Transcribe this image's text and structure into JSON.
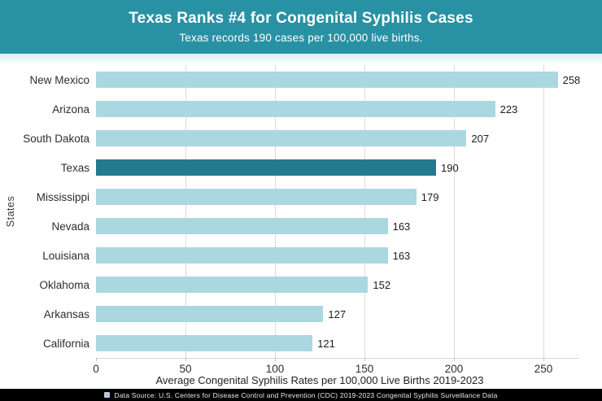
{
  "header": {
    "title": "Texas Ranks #4 for Congenital Syphilis Cases",
    "subtitle": "Texas records 190 cases per 100,000 live births.",
    "background_color": "#2991a4",
    "text_color": "#ffffff"
  },
  "chart_data": {
    "type": "bar",
    "orientation": "horizontal",
    "categories": [
      "New Mexico",
      "Arizona",
      "South Dakota",
      "Texas",
      "Mississippi",
      "Nevada",
      "Louisiana",
      "Oklahoma",
      "Arkansas",
      "California"
    ],
    "values": [
      258,
      223,
      207,
      190,
      179,
      163,
      163,
      152,
      127,
      121
    ],
    "title": "Texas Ranks #4 for Congenital Syphilis Cases",
    "xlabel": "Average Congenital Syphilis Rates per 100,000 Live Births 2019-2023",
    "ylabel": "States",
    "xlim": [
      0,
      270
    ],
    "x_ticks": [
      0,
      50,
      100,
      150,
      200,
      250
    ],
    "grid": true,
    "legend": false,
    "bar_color": "#abd7e1",
    "highlight_category": "Texas",
    "highlight_color": "#23798e",
    "value_labels_shown": true
  },
  "footer": {
    "icon": "data-source-square-icon",
    "text": "Data Source: U.S. Centers for Disease Control and Prevention (CDC) 2019-2023 Congenital Syphilis Surveillance Data",
    "background_color": "#000000"
  }
}
